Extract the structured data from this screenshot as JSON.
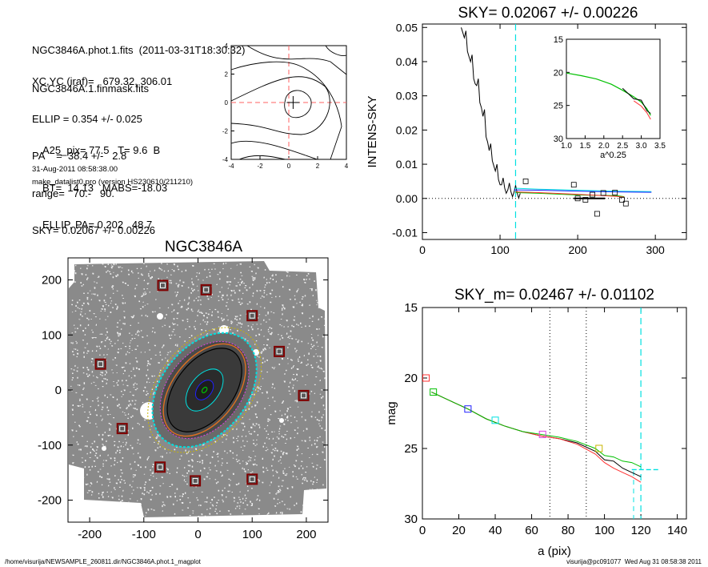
{
  "header": {
    "lines_a": [
      "NGC3846A.phot.1.fits  (2011-03-31T18:30:32)",
      "NGC3846A.1.finmask.fits"
    ],
    "lines_b": [
      "XC,YC (iraf)=   679.32, 306.01",
      "ELLIP = 0.354 +/- 0.025",
      "PA    =  38.4 +/-   2.8",
      "range=   70.-   90.",
      "SKY= 0.02067 +/- 0.00226"
    ],
    "lines_c": [
      "A25_pix= 77.5   T= 9.6  B",
      "BT=  14.13   MABS=-18.03",
      "ELLIP, PA= 0.202   48.7"
    ],
    "date": "31-Aug-2011 08:58:38.00",
    "program": "make_datalist0.pro (version HS230610/211210)"
  },
  "footer": {
    "left": "/home/visurija/NEWSAMPLE_260811.dir/NGC3846A.phot.1_magplot",
    "right": "visurija@pc091077  Wed Aug 31 08:58:38 2011"
  },
  "colors": {
    "axis": "#000000",
    "cyan": "#00e0e0",
    "red": "#ff3030",
    "green": "#00c000",
    "olive": "#c8b400",
    "blue": "#2020ff",
    "magenta": "#e040e0",
    "orange": "#e07020",
    "marker": "#800000"
  },
  "chart_data": [
    {
      "id": "contour",
      "type": "contour",
      "title": "",
      "xlim": [
        -4,
        4
      ],
      "ylim": [
        -4,
        4
      ],
      "xticks": [
        -4,
        -2,
        0,
        2,
        4
      ],
      "yticks": [
        -4,
        -2,
        0,
        2,
        4
      ],
      "center": [
        0.3,
        0.0
      ],
      "dashed_lines": {
        "x": 0,
        "y": 0
      }
    },
    {
      "id": "sky",
      "type": "line",
      "title": "SKY= 0.02067 +/- 0.00226",
      "xlabel": "",
      "ylabel": "INTENS-SKY",
      "xlim": [
        0,
        340
      ],
      "ylim": [
        -0.012,
        0.051
      ],
      "xticks": [
        0,
        100,
        200,
        300
      ],
      "yticks": [
        -0.01,
        0.0,
        0.01,
        0.02,
        0.03,
        0.04,
        0.05
      ],
      "ytick_labels": [
        "-0.01",
        "0.00",
        "0.01",
        "0.02",
        "0.03",
        "0.04",
        "0.05"
      ],
      "vline": 120,
      "hline": 0,
      "profile_x": [
        50,
        54,
        58,
        62,
        66,
        70,
        74,
        78,
        82,
        86,
        90,
        94,
        98,
        102,
        106,
        110,
        114,
        118,
        122,
        126
      ],
      "profile_y": [
        0.05,
        0.047,
        0.043,
        0.04,
        0.035,
        0.033,
        0.028,
        0.024,
        0.018,
        0.014,
        0.011,
        0.008,
        0.0055,
        0.004,
        0.003,
        0.0025,
        0.002,
        0.0018,
        0.0016,
        0.0015
      ],
      "tails": [
        {
          "color": "cyan",
          "x": [
            118,
            150,
            200,
            250,
            295
          ],
          "y": [
            0.003,
            0.0027,
            0.0024,
            0.0021,
            0.002
          ]
        },
        {
          "color": "blue",
          "x": [
            118,
            150,
            200,
            250,
            295
          ],
          "y": [
            0.0025,
            0.0024,
            0.0021,
            0.0019,
            0.0018
          ]
        },
        {
          "color": "green",
          "x": [
            120,
            150,
            200,
            250,
            260
          ],
          "y": [
            0.0017,
            0.0015,
            0.001,
            0.0008,
            0.0005
          ]
        },
        {
          "color": "red",
          "x": [
            120,
            150,
            200,
            250,
            260
          ],
          "y": [
            0.0019,
            0.0017,
            0.0012,
            0.0006,
            0.0004
          ]
        }
      ],
      "squares_x": [
        133,
        195,
        200,
        210,
        219,
        225,
        233,
        248,
        257,
        262
      ],
      "squares_y": [
        0.005,
        0.004,
        0.0,
        -0.0004,
        0.0011,
        -0.0045,
        0.0016,
        0.0017,
        -0.0004,
        -0.0015
      ],
      "mean_segment": {
        "x": [
          195,
          235
        ],
        "y": 0.0
      },
      "inset": {
        "xlim": [
          1.0,
          3.5
        ],
        "ylim": [
          30,
          15
        ],
        "xlabel": "a^0.25",
        "xticks": [
          1.0,
          1.5,
          2.0,
          2.5,
          3.0,
          3.5
        ],
        "xtick_labels": [
          "1.0",
          "1.5",
          "2.0",
          "2.5",
          "3.0",
          "3.5"
        ],
        "yticks": [
          15,
          20,
          25,
          30
        ],
        "x": [
          1.0,
          1.4,
          1.8,
          2.2,
          2.5,
          2.8,
          3.0,
          3.15,
          3.25
        ],
        "y": [
          20.1,
          20.5,
          21.0,
          21.8,
          22.7,
          23.7,
          24.5,
          25.5,
          26.5
        ]
      }
    },
    {
      "id": "image",
      "type": "image",
      "title": "NGC3846A",
      "xlim": [
        -240,
        240
      ],
      "ylim": [
        -240,
        240
      ],
      "xticks": [
        -200,
        -100,
        0,
        100,
        200
      ],
      "yticks": [
        -200,
        -100,
        0,
        100,
        200
      ],
      "marker_x": [
        -65,
        15,
        100,
        -180,
        150,
        195,
        -140,
        -70,
        -5,
        100
      ],
      "marker_y": [
        190,
        182,
        135,
        47,
        70,
        -10,
        -70,
        -140,
        -165,
        -162
      ]
    },
    {
      "id": "mag",
      "type": "line",
      "title": "SKY_m=  0.02467 +/- 0.01102",
      "xlabel": "a (pix)",
      "ylabel": "mag",
      "xlim": [
        0,
        145
      ],
      "ylim": [
        30,
        15
      ],
      "xticks": [
        0,
        20,
        40,
        60,
        80,
        100,
        120,
        140
      ],
      "yticks": [
        15,
        20,
        25,
        30
      ],
      "vlines_dotted": [
        70,
        90
      ],
      "vline_dashed": 120,
      "series": [
        {
          "color": "black",
          "x": [
            5,
            15,
            25,
            35,
            45,
            55,
            65,
            75,
            85,
            95,
            100,
            105,
            110,
            115,
            120
          ],
          "y": [
            21.0,
            21.6,
            22.2,
            22.9,
            23.4,
            23.8,
            24.1,
            24.3,
            24.6,
            25.2,
            25.8,
            25.9,
            26.4,
            26.7,
            27.0
          ]
        },
        {
          "color": "red",
          "x": [
            5,
            15,
            25,
            35,
            45,
            55,
            65,
            75,
            85,
            95,
            100,
            105,
            110,
            115,
            120
          ],
          "y": [
            21.0,
            21.6,
            22.2,
            22.9,
            23.4,
            23.8,
            24.1,
            24.3,
            24.7,
            25.4,
            26.0,
            26.4,
            26.7,
            27.0,
            27.4
          ]
        },
        {
          "color": "green",
          "x": [
            5,
            15,
            25,
            35,
            45,
            55,
            65,
            75,
            85,
            95,
            100,
            105,
            110,
            115,
            120
          ],
          "y": [
            21.0,
            21.6,
            22.2,
            22.9,
            23.4,
            23.8,
            24.0,
            24.2,
            24.5,
            25.0,
            25.5,
            25.6,
            25.9,
            26.0,
            26.3
          ]
        }
      ],
      "sky_segment": {
        "x": [
          115,
          130
        ],
        "y": 26.5
      },
      "squares": [
        {
          "x": 2,
          "y": 20.0,
          "color": "red"
        },
        {
          "x": 6,
          "y": 21.0,
          "color": "green"
        },
        {
          "x": 25,
          "y": 22.2,
          "color": "blue"
        },
        {
          "x": 40,
          "y": 23.0,
          "color": "cyan"
        },
        {
          "x": 66,
          "y": 24.0,
          "color": "magenta"
        },
        {
          "x": 97,
          "y": 25.0,
          "color": "olive"
        }
      ]
    }
  ]
}
